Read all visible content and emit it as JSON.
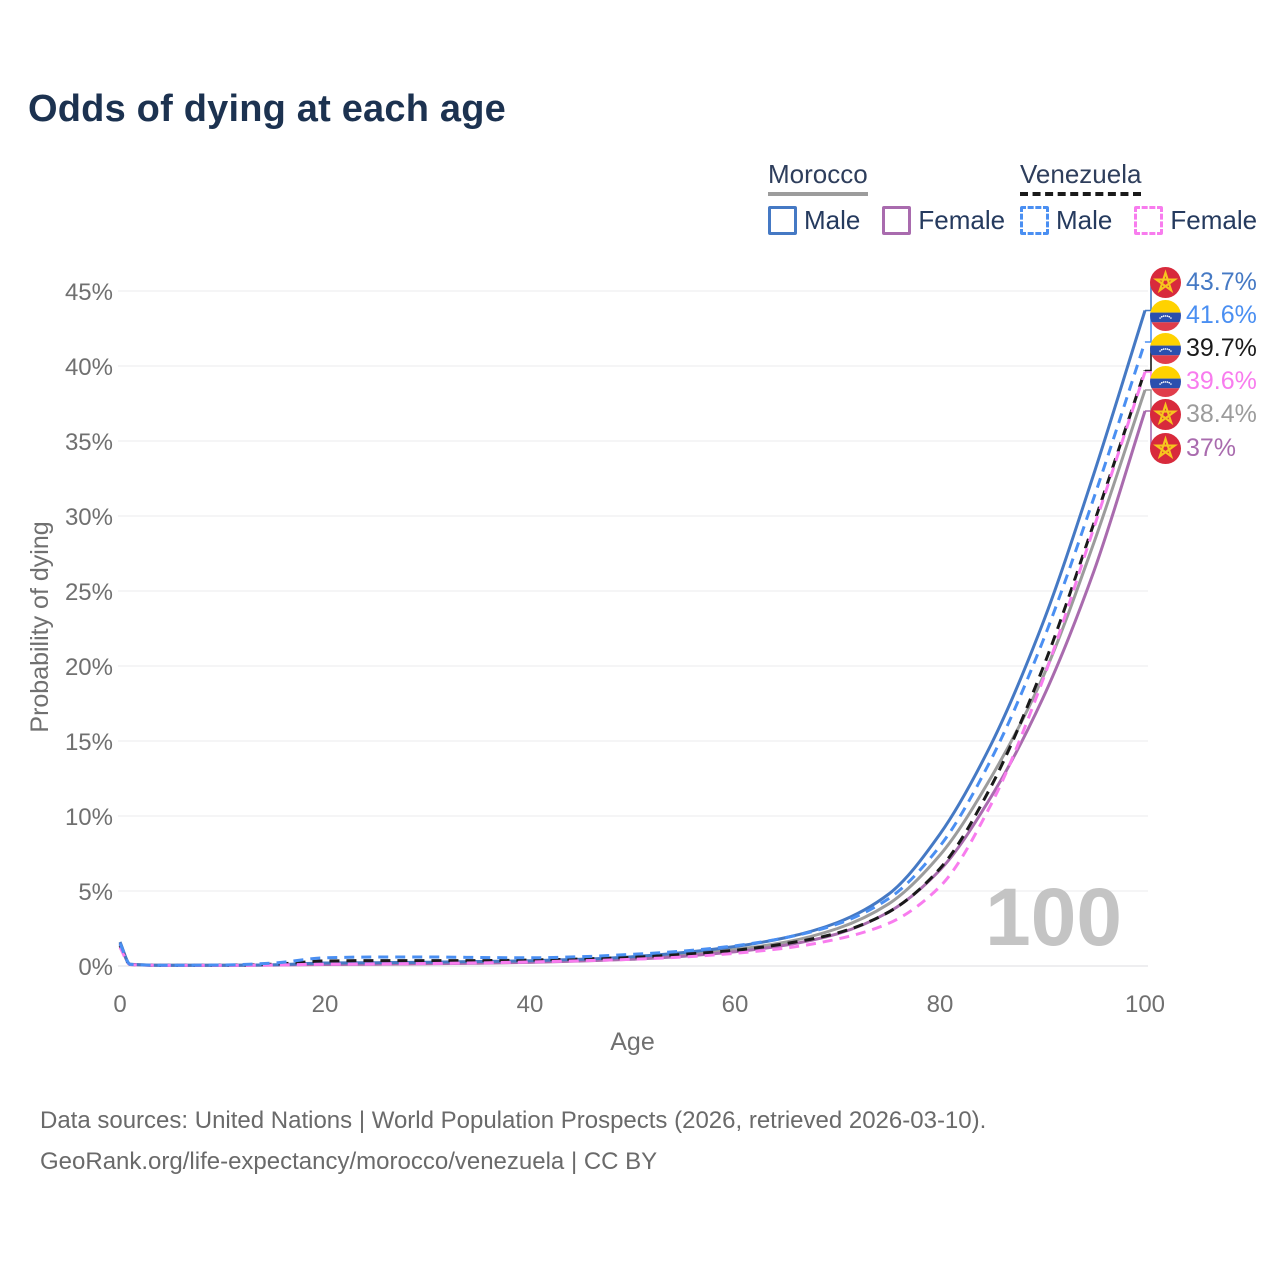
{
  "page": {
    "title": "Odds of dying at each age"
  },
  "legend": {
    "groups": [
      {
        "country": "Morocco",
        "line_style": "solid",
        "line_color": "#9c9c9c",
        "items": [
          {
            "label": "Male",
            "color": "#4579c4",
            "style": "solid"
          },
          {
            "label": "Female",
            "color": "#a96bae",
            "style": "solid"
          }
        ]
      },
      {
        "country": "Venezuela",
        "line_style": "dashed",
        "line_color": "#1a1a1a",
        "items": [
          {
            "label": "Male",
            "color": "#4a8ff2",
            "style": "dashed"
          },
          {
            "label": "Female",
            "color": "#f87cee",
            "style": "dashed"
          }
        ]
      }
    ]
  },
  "chart_data": {
    "type": "line",
    "title": "Odds of dying at each age",
    "xlabel": "Age",
    "ylabel": "Probability of dying",
    "xlim": [
      0,
      100
    ],
    "ylim": [
      0,
      45
    ],
    "xticks": [
      0,
      20,
      40,
      60,
      80,
      100
    ],
    "yticks": [
      0,
      5,
      10,
      15,
      20,
      25,
      30,
      35,
      40,
      45
    ],
    "ytick_suffix": "%",
    "grid": "horizontal",
    "legend_position": "top-right",
    "watermark_age": "100",
    "ages": [
      0,
      1,
      5,
      10,
      15,
      20,
      25,
      30,
      35,
      40,
      45,
      50,
      55,
      60,
      65,
      70,
      75,
      80,
      85,
      90,
      95,
      100
    ],
    "series": [
      {
        "id": "morocco-male",
        "name": "Morocco Male",
        "country": "Morocco",
        "sex": "Male",
        "style": "solid",
        "color": "#4579c4",
        "values": [
          1.6,
          0.12,
          0.05,
          0.05,
          0.08,
          0.2,
          0.22,
          0.25,
          0.3,
          0.35,
          0.45,
          0.62,
          0.9,
          1.3,
          1.9,
          2.9,
          4.8,
          8.8,
          14.8,
          22.8,
          32.8,
          43.7
        ]
      },
      {
        "id": "venezuela-male",
        "name": "Venezuela Male",
        "country": "Venezuela",
        "sex": "Male",
        "style": "dashed",
        "color": "#4a8ff2",
        "values": [
          1.5,
          0.11,
          0.05,
          0.07,
          0.2,
          0.55,
          0.6,
          0.6,
          0.57,
          0.55,
          0.62,
          0.78,
          1.0,
          1.35,
          1.9,
          2.8,
          4.5,
          8.0,
          13.8,
          21.6,
          31.2,
          41.6
        ]
      },
      {
        "id": "venezuela-both",
        "name": "Venezuela",
        "country": "Venezuela",
        "sex": "Both",
        "style": "dashed",
        "color": "#1a1a1a",
        "values": [
          1.35,
          0.1,
          0.04,
          0.05,
          0.12,
          0.33,
          0.36,
          0.36,
          0.36,
          0.4,
          0.47,
          0.58,
          0.78,
          1.05,
          1.5,
          2.2,
          3.6,
          6.5,
          12.0,
          19.8,
          29.5,
          39.7
        ]
      },
      {
        "id": "venezuela-female",
        "name": "Venezuela Female",
        "country": "Venezuela",
        "sex": "Female",
        "style": "dashed",
        "color": "#f87cee",
        "values": [
          1.25,
          0.09,
          0.04,
          0.04,
          0.07,
          0.12,
          0.14,
          0.17,
          0.21,
          0.27,
          0.35,
          0.45,
          0.6,
          0.85,
          1.2,
          1.8,
          2.85,
          5.3,
          10.8,
          19.0,
          29.2,
          39.6
        ]
      },
      {
        "id": "morocco-both",
        "name": "Morocco",
        "country": "Morocco",
        "sex": "Both",
        "style": "solid",
        "color": "#9c9c9c",
        "values": [
          1.55,
          0.11,
          0.05,
          0.05,
          0.07,
          0.16,
          0.18,
          0.2,
          0.25,
          0.3,
          0.4,
          0.54,
          0.78,
          1.1,
          1.6,
          2.5,
          4.15,
          7.4,
          12.6,
          19.2,
          28.2,
          38.4
        ]
      },
      {
        "id": "morocco-female",
        "name": "Morocco Female",
        "country": "Morocco",
        "sex": "Female",
        "style": "solid",
        "color": "#a96bae",
        "values": [
          1.45,
          0.1,
          0.04,
          0.04,
          0.06,
          0.1,
          0.12,
          0.15,
          0.18,
          0.24,
          0.33,
          0.45,
          0.65,
          0.95,
          1.4,
          2.15,
          3.6,
          6.4,
          11.3,
          17.8,
          26.3,
          37.0
        ]
      }
    ],
    "end_labels": [
      {
        "value": "43.7%",
        "flag": "morocco"
      },
      {
        "value": "41.6%",
        "flag": "venezuela"
      },
      {
        "value": "39.7%",
        "flag": "venezuela"
      },
      {
        "value": "39.6%",
        "flag": "venezuela"
      },
      {
        "value": "38.4%",
        "flag": "morocco"
      },
      {
        "value": "37%",
        "flag": "morocco"
      }
    ]
  },
  "footer": {
    "line1": "Data sources: United Nations | World Population Prospects (2026, retrieved 2026-03-10).",
    "line2": "GeoRank.org/life-expectancy/morocco/venezuela | CC BY"
  }
}
